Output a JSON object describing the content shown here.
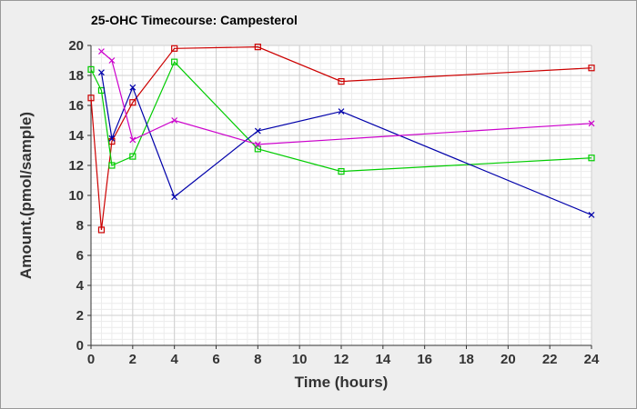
{
  "chart_data": {
    "type": "line",
    "title": "25-OHC Timecourse: Campesterol",
    "xlabel": "Time (hours)",
    "ylabel": "Amount.(pmol/sample)",
    "xlim": [
      0,
      24
    ],
    "ylim": [
      0,
      20
    ],
    "x_ticks": [
      0,
      2,
      4,
      6,
      8,
      10,
      12,
      14,
      16,
      18,
      20,
      22,
      24
    ],
    "y_ticks": [
      0,
      2,
      4,
      6,
      8,
      10,
      12,
      14,
      16,
      18,
      20
    ],
    "grid": true,
    "legend": "none",
    "series": [
      {
        "color": "#cc0000",
        "marker": "square",
        "x": [
          0,
          0.5,
          1,
          2,
          4,
          8,
          12,
          24
        ],
        "y": [
          16.5,
          7.7,
          13.6,
          16.2,
          19.8,
          19.9,
          17.6,
          18.5
        ]
      },
      {
        "color": "#00cc00",
        "marker": "square",
        "x": [
          0,
          0.5,
          1,
          2,
          4,
          8,
          12,
          24
        ],
        "y": [
          18.4,
          17.0,
          12.0,
          12.6,
          18.9,
          13.1,
          11.6,
          12.5
        ]
      },
      {
        "color": "#0000aa",
        "marker": "x",
        "x": [
          0.5,
          1,
          2,
          4,
          8,
          12,
          24
        ],
        "y": [
          18.2,
          13.8,
          17.2,
          9.9,
          14.3,
          15.6,
          8.7
        ]
      },
      {
        "color": "#cc00cc",
        "marker": "x",
        "x": [
          0.5,
          1,
          2,
          4,
          8,
          24
        ],
        "y": [
          19.6,
          19.0,
          13.7,
          15.0,
          13.4,
          14.8
        ]
      }
    ]
  }
}
